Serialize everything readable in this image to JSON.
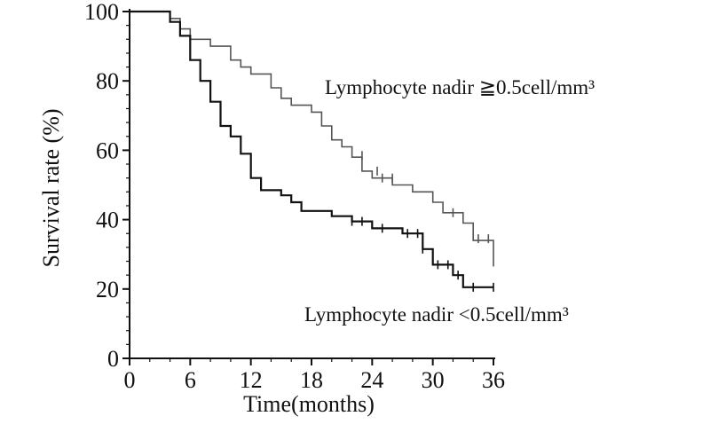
{
  "chart_data": {
    "type": "line",
    "xlabel": "Time(months)",
    "ylabel": "Survival rate (%)",
    "xlim": [
      0,
      36
    ],
    "ylim": [
      0,
      100
    ],
    "x_ticks": [
      0,
      6,
      12,
      18,
      24,
      30,
      36
    ],
    "y_ticks": [
      0,
      20,
      40,
      60,
      80,
      100
    ],
    "grid": false,
    "step": true,
    "series": [
      {
        "name": "Lymphocyte nadir ≧0.5cell/mm³",
        "color": "#555555",
        "points": [
          [
            0,
            100
          ],
          [
            4,
            100
          ],
          [
            4,
            98
          ],
          [
            5,
            98
          ],
          [
            5,
            95
          ],
          [
            6,
            95
          ],
          [
            6,
            92
          ],
          [
            8,
            92
          ],
          [
            8,
            90
          ],
          [
            10,
            90
          ],
          [
            10,
            86
          ],
          [
            11,
            86
          ],
          [
            11,
            84
          ],
          [
            12,
            84
          ],
          [
            12,
            82
          ],
          [
            14,
            82
          ],
          [
            14,
            78
          ],
          [
            15,
            78
          ],
          [
            15,
            75
          ],
          [
            16,
            75
          ],
          [
            16,
            73
          ],
          [
            18,
            73
          ],
          [
            18,
            71
          ],
          [
            19,
            71
          ],
          [
            19,
            67
          ],
          [
            20,
            67
          ],
          [
            20,
            63
          ],
          [
            21,
            63
          ],
          [
            21,
            61
          ],
          [
            22,
            61
          ],
          [
            22,
            58
          ],
          [
            23,
            58
          ],
          [
            23,
            54
          ],
          [
            24,
            54
          ],
          [
            24,
            52
          ],
          [
            26,
            52
          ],
          [
            26,
            50
          ],
          [
            28,
            50
          ],
          [
            28,
            48
          ],
          [
            30,
            48
          ],
          [
            30,
            45
          ],
          [
            31,
            45
          ],
          [
            31,
            42
          ],
          [
            33,
            42
          ],
          [
            33,
            39
          ],
          [
            34,
            39
          ],
          [
            34,
            34
          ],
          [
            36,
            34
          ],
          [
            36,
            26.5
          ]
        ],
        "censor": [
          [
            23,
            58.5
          ],
          [
            24.5,
            54
          ],
          [
            25,
            52
          ],
          [
            26,
            52
          ],
          [
            32,
            42
          ],
          [
            34.5,
            34.5
          ],
          [
            35.5,
            34.5
          ]
        ]
      },
      {
        "name": "Lymphocyte nadir <0.5cell/mm³",
        "color": "#111111",
        "points": [
          [
            0,
            100
          ],
          [
            4,
            100
          ],
          [
            4,
            97
          ],
          [
            5,
            97
          ],
          [
            5,
            93
          ],
          [
            6,
            93
          ],
          [
            6,
            86
          ],
          [
            7,
            86
          ],
          [
            7,
            80
          ],
          [
            8,
            80
          ],
          [
            8,
            74
          ],
          [
            9,
            74
          ],
          [
            9,
            67
          ],
          [
            10,
            67
          ],
          [
            10,
            64
          ],
          [
            11,
            64
          ],
          [
            11,
            59
          ],
          [
            12,
            59
          ],
          [
            12,
            52
          ],
          [
            13,
            52
          ],
          [
            13,
            48.5
          ],
          [
            15,
            48.5
          ],
          [
            15,
            47
          ],
          [
            16,
            47
          ],
          [
            16,
            45
          ],
          [
            17,
            45
          ],
          [
            17,
            42.5
          ],
          [
            20,
            42.5
          ],
          [
            20,
            41
          ],
          [
            22,
            41
          ],
          [
            22,
            39.5
          ],
          [
            24,
            39.5
          ],
          [
            24,
            37.5
          ],
          [
            27,
            37.5
          ],
          [
            27,
            36
          ],
          [
            29,
            36
          ],
          [
            29,
            31.5
          ],
          [
            30,
            31.5
          ],
          [
            30,
            27
          ],
          [
            32,
            27
          ],
          [
            32,
            24
          ],
          [
            33,
            24
          ],
          [
            33,
            20.5
          ],
          [
            36,
            20.5
          ]
        ],
        "censor": [
          [
            22,
            39.5
          ],
          [
            23,
            39.5
          ],
          [
            25,
            37.5
          ],
          [
            27.5,
            36
          ],
          [
            28.5,
            36
          ],
          [
            29,
            31.5
          ],
          [
            30.5,
            27
          ],
          [
            31.5,
            27
          ],
          [
            32.5,
            24
          ],
          [
            34,
            20.5
          ],
          [
            36,
            20.5
          ]
        ]
      }
    ]
  }
}
